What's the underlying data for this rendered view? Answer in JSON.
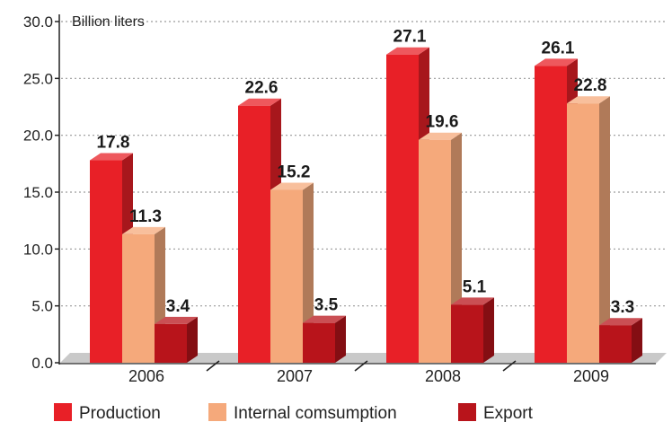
{
  "colors": {
    "production": "#e82027",
    "internal": "#f5a97b",
    "export": "#b8141b"
  },
  "chart_data": {
    "type": "bar",
    "unit_label": "Billion liters",
    "categories": [
      "2006",
      "2007",
      "2008",
      "2009"
    ],
    "series": [
      {
        "name": "Production",
        "values": [
          17.8,
          22.6,
          27.1,
          26.1
        ],
        "labels": [
          "17.8",
          "22.6",
          "27.1",
          "26.1"
        ]
      },
      {
        "name": "Internal comsumption",
        "values": [
          11.3,
          15.2,
          19.6,
          22.8
        ],
        "labels": [
          "11.3",
          "15.2",
          "19.6",
          "22.8"
        ]
      },
      {
        "name": "Export",
        "values": [
          3.4,
          3.5,
          5.1,
          3.3
        ],
        "labels": [
          "3.4",
          "3.5",
          "5.1",
          "3.3"
        ]
      }
    ],
    "yticks": [
      "0.0",
      "5.0",
      "10.0",
      "15.0",
      "20.0",
      "25.0",
      "30.0"
    ],
    "ylim": [
      0,
      30
    ],
    "grid": true,
    "legend_position": "bottom"
  }
}
